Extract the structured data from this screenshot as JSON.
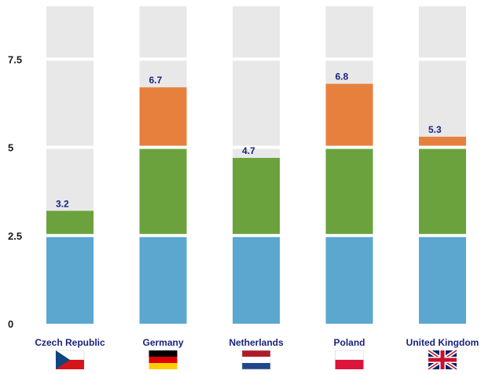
{
  "chart_data": {
    "type": "bar",
    "title": "",
    "xlabel": "",
    "ylabel": "",
    "ylim": [
      0,
      9
    ],
    "yticks": [
      {
        "value": 0,
        "label": "0"
      },
      {
        "value": 2.5,
        "label": "2.5"
      },
      {
        "value": 5,
        "label": "5"
      },
      {
        "value": 7.5,
        "label": "7.5"
      }
    ],
    "categories": [
      "Czech Republic",
      "Germany",
      "Netherlands",
      "Poland",
      "United Kingdom"
    ],
    "flags": [
      "czech-flag",
      "german-flag",
      "netherlands-flag",
      "polish-flag",
      "uk-flag"
    ],
    "totals": [
      3.2,
      6.7,
      4.7,
      6.8,
      5.3
    ],
    "total_labels": [
      "3.2",
      "6.7",
      "4.7",
      "6.8",
      "5.3"
    ],
    "background_max": 9,
    "segment_colors": {
      "band1": "#5ba7d0",
      "band2": "#6ba23d",
      "band3": "#e8803d",
      "background": "#e8e8e8"
    }
  }
}
